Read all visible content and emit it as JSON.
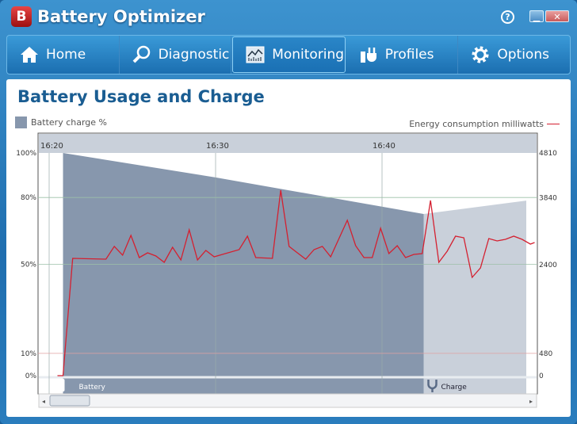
{
  "window": {
    "title": "Battery Optimizer",
    "logo": "B",
    "help_icon": "question-circle-icon",
    "min_icon": "minimize-icon",
    "close_icon": "close-icon"
  },
  "nav": [
    {
      "label": "Home",
      "icon": "home-icon",
      "active": false
    },
    {
      "label": "Diagnostic",
      "icon": "magnifier-icon",
      "active": false
    },
    {
      "label": "Monitoring",
      "icon": "chart-monitor-icon",
      "active": true
    },
    {
      "label": "Profiles",
      "icon": "plug-battery-icon",
      "active": false
    },
    {
      "label": "Options",
      "icon": "gear-icon",
      "active": false
    }
  ],
  "page": {
    "heading": "Battery Usage and Charge"
  },
  "colors": {
    "battery_fill": "#8797ad",
    "charge_fill": "#c9d0da",
    "energy_line": "#d42030",
    "accent": "#1a5d92"
  },
  "chart_data": {
    "type": "area+line",
    "legend_left": "Battery charge %",
    "legend_right": "Energy consumption milliwatts",
    "x_ticks": [
      "16:20",
      "16:30",
      "16:40"
    ],
    "y_left_ticks": [
      "100%",
      "80%",
      "50%",
      "10%",
      "0%"
    ],
    "y_left_values": [
      100,
      80,
      50,
      10,
      0
    ],
    "y_right_ticks": [
      "4810",
      "3840",
      "2400",
      "480",
      "0"
    ],
    "y_right_values": [
      4810,
      3840,
      2400,
      480,
      0
    ],
    "ylim_left": [
      0,
      100
    ],
    "ylim_right": [
      0,
      4810
    ],
    "bands": [
      {
        "label": "Battery",
        "icon": "battery-icon",
        "from": "16:20:50",
        "to": "16:42:30"
      },
      {
        "label": "Charge",
        "icon": "plug-icon",
        "from": "16:42:30",
        "to": "16:48:40"
      }
    ],
    "battery_charge": [
      [
        "16:20:50",
        100
      ],
      [
        "16:30:00",
        89
      ],
      [
        "16:42:30",
        72.6
      ],
      [
        "16:48:40",
        78.6
      ]
    ],
    "energy": [
      [
        "16:20:30",
        0
      ],
      [
        "16:20:50",
        0
      ],
      [
        "16:21:25",
        2534
      ],
      [
        "16:23:25",
        2517
      ],
      [
        "16:23:55",
        2791
      ],
      [
        "16:24:25",
        2602
      ],
      [
        "16:24:55",
        3030
      ],
      [
        "16:25:25",
        2551
      ],
      [
        "16:25:55",
        2654
      ],
      [
        "16:26:25",
        2585
      ],
      [
        "16:26:55",
        2448
      ],
      [
        "16:27:25",
        2773
      ],
      [
        "16:27:55",
        2500
      ],
      [
        "16:28:25",
        3150
      ],
      [
        "16:28:55",
        2500
      ],
      [
        "16:29:25",
        2705
      ],
      [
        "16:29:55",
        2568
      ],
      [
        "16:31:25",
        2722
      ],
      [
        "16:31:55",
        3013
      ],
      [
        "16:32:25",
        2551
      ],
      [
        "16:33:25",
        2534
      ],
      [
        "16:33:55",
        4006
      ],
      [
        "16:34:25",
        2791
      ],
      [
        "16:34:55",
        2654
      ],
      [
        "16:35:25",
        2517
      ],
      [
        "16:35:55",
        2722
      ],
      [
        "16:36:25",
        2791
      ],
      [
        "16:36:55",
        2568
      ],
      [
        "16:37:55",
        3356
      ],
      [
        "16:38:25",
        2808
      ],
      [
        "16:38:55",
        2551
      ],
      [
        "16:39:25",
        2551
      ],
      [
        "16:39:55",
        3184
      ],
      [
        "16:40:25",
        2636
      ],
      [
        "16:40:55",
        2808
      ],
      [
        "16:41:25",
        2551
      ],
      [
        "16:41:55",
        2619
      ],
      [
        "16:42:25",
        2636
      ],
      [
        "16:42:55",
        3784
      ],
      [
        "16:43:25",
        2448
      ],
      [
        "16:43:55",
        2688
      ],
      [
        "16:44:25",
        3013
      ],
      [
        "16:44:55",
        2979
      ],
      [
        "16:45:25",
        2123
      ],
      [
        "16:45:55",
        2328
      ],
      [
        "16:46:25",
        2962
      ],
      [
        "16:46:55",
        2910
      ],
      [
        "16:47:25",
        2945
      ],
      [
        "16:47:55",
        3013
      ],
      [
        "16:48:25",
        2945
      ],
      [
        "16:48:55",
        2842
      ],
      [
        "16:49:10",
        2876
      ]
    ]
  }
}
